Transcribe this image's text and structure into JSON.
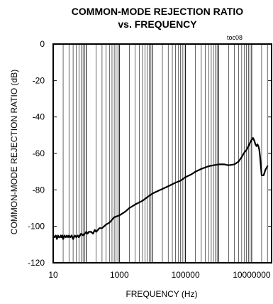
{
  "chart_data": {
    "type": "line",
    "title_line1": "COMMON-MODE REJECTION RATIO",
    "title_line2": "vs. FREQUENCY",
    "figure_tag": "toc08",
    "xlabel": "FREQUENCY (Hz)",
    "ylabel": "COMMON-MODE REJECTION RATIO (dB)",
    "x_scale": "log",
    "xlim": [
      10,
      40000000
    ],
    "ylim": [
      -120,
      0
    ],
    "x_tick_values": [
      10,
      1000,
      100000,
      10000000
    ],
    "x_tick_labels": [
      "10",
      "1000",
      "100000",
      "10000000"
    ],
    "y_tick_values": [
      0,
      -20,
      -40,
      -60,
      -80,
      -100,
      -120
    ],
    "y_tick_labels": [
      "0",
      "-20",
      "-40",
      "-60",
      "-80",
      "-100",
      "-120"
    ],
    "grid": "vertical log decades",
    "line_color": "#000000",
    "series": [
      {
        "x": [
          10,
          11,
          12,
          13,
          14,
          15,
          16,
          17,
          18,
          19,
          20,
          21,
          22,
          24,
          26,
          28,
          30,
          33,
          36,
          40,
          45,
          50,
          55,
          60,
          70,
          80,
          90,
          100,
          110,
          120,
          140,
          160,
          180,
          200,
          250,
          300,
          400,
          500,
          700,
          1000,
          1500,
          2000,
          3000,
          5000,
          7000,
          10000,
          15000,
          20000,
          30000,
          50000,
          70000,
          100000,
          150000,
          200000,
          300000,
          500000,
          700000,
          1000000,
          1500000,
          2000000,
          3000000,
          4000000,
          5000000,
          6000000,
          7000000,
          8000000,
          9000000,
          10000000,
          11000000,
          12000000,
          13000000,
          14000000,
          15000000,
          16000000,
          17000000,
          18000000,
          20000000,
          23000000,
          26000000,
          30000000
        ],
        "y": [
          -105,
          -106,
          -105,
          -107,
          -105,
          -106,
          -106,
          -105,
          -106,
          -105,
          -107,
          -106,
          -105,
          -106,
          -105,
          -106,
          -105,
          -106,
          -105,
          -107,
          -105,
          -106,
          -105,
          -106,
          -104,
          -105,
          -104,
          -103,
          -104,
          -103,
          -103,
          -104,
          -102,
          -103,
          -101,
          -101,
          -99,
          -98,
          -95,
          -94,
          -92,
          -90,
          -88,
          -86,
          -84,
          -82,
          -80.5,
          -79.5,
          -78,
          -76,
          -75,
          -73,
          -71.5,
          -70,
          -68.5,
          -67,
          -66.5,
          -66,
          -66,
          -66.5,
          -66,
          -64.5,
          -62,
          -59.5,
          -58,
          -56,
          -54,
          -52.5,
          -51.5,
          -53,
          -55,
          -56,
          -55,
          -56,
          -58,
          -62,
          -72,
          -72,
          -69,
          -67
        ]
      }
    ]
  }
}
